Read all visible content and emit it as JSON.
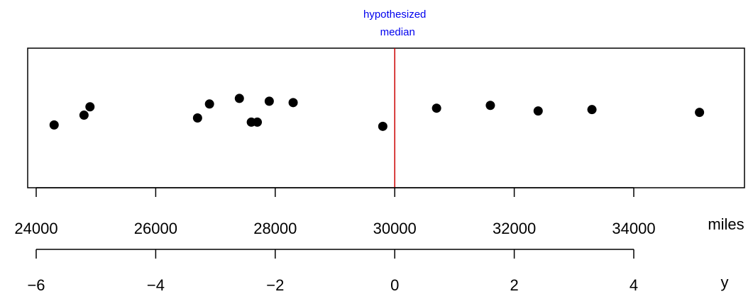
{
  "chart_data": {
    "type": "scatter",
    "title": "",
    "xlabel": "miles",
    "secondary_xlabel": "y",
    "xlim": [
      23900,
      35100
    ],
    "ticks_miles": [
      24000,
      26000,
      28000,
      30000,
      32000,
      34000
    ],
    "tick_labels_miles": [
      "24000",
      "26000",
      "28000",
      "30000",
      "32000",
      "34000"
    ],
    "ticks_y": [
      -6,
      -4,
      -2,
      0,
      2,
      4
    ],
    "tick_labels_y": [
      "−6",
      "−4",
      "−2",
      "0",
      "2",
      "4"
    ],
    "y_transform": "y = (miles − 30000) / 1000",
    "points_miles": [
      24300,
      24800,
      24900,
      26700,
      26900,
      27400,
      27600,
      27700,
      27900,
      28300,
      29800,
      30700,
      31600,
      32400,
      33300,
      35100
    ],
    "jitter": [
      0.45,
      0.52,
      0.58,
      0.5,
      0.6,
      0.64,
      0.47,
      0.47,
      0.62,
      0.61,
      0.44,
      0.57,
      0.59,
      0.55,
      0.56,
      0.54
    ],
    "reference_line": {
      "x": 30000,
      "label": "hypothesized\nmedian",
      "color": "#cc0000",
      "label_color": "#0000ee"
    },
    "grid": false,
    "legend": "none"
  }
}
